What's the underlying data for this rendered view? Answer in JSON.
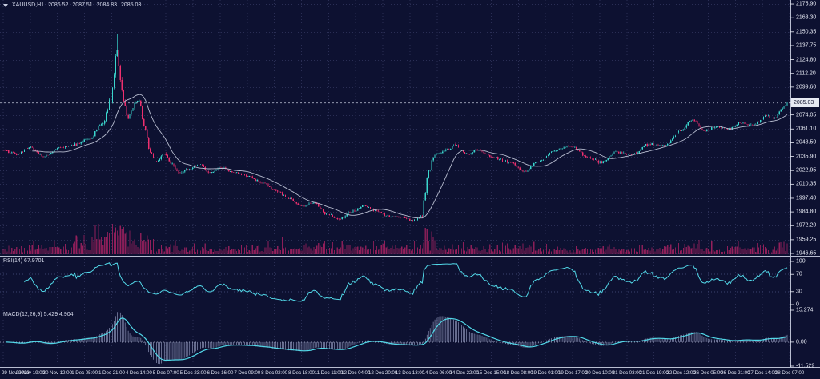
{
  "header": {
    "symbol_timeframe": "XAUUSD,H1",
    "open": "2086.52",
    "high": "2087.51",
    "low": "2084.83",
    "close": "2085.03"
  },
  "colors": {
    "background": "#0d1131",
    "grid": "#2a2e55",
    "bull": "#3bd5cd",
    "bear": "#ee2f6e",
    "ma_line": "#b7bccf",
    "volume": "#96205c",
    "indicator_line": "#52d8e8",
    "macd_histogram": "#9aa1c6",
    "separator": "#b8bdd1",
    "axis_text": "#e8ebf5",
    "guide_line": "#3c4270",
    "zero_line": "#8a90ab",
    "price_box_bg": "#e6e9f2",
    "price_box_text": "#10132e",
    "current_price_line": "#c3c8da"
  },
  "chart_data": {
    "type": "candlestick",
    "title": "XAUUSD,H1",
    "bars": 500,
    "seed": 7,
    "current_price": {
      "value": 2085.03,
      "label": "2085.03"
    },
    "price_path_anchors": [
      [
        0,
        2042
      ],
      [
        9,
        2038
      ],
      [
        18,
        2044
      ],
      [
        26,
        2036
      ],
      [
        37,
        2044
      ],
      [
        47,
        2047
      ],
      [
        55,
        2052
      ],
      [
        64,
        2066
      ],
      [
        69,
        2088
      ],
      [
        71,
        2112
      ],
      [
        73,
        2136
      ],
      [
        75,
        2108
      ],
      [
        77,
        2085
      ],
      [
        80,
        2072
      ],
      [
        84,
        2084
      ],
      [
        87,
        2087
      ],
      [
        90,
        2064
      ],
      [
        94,
        2040
      ],
      [
        98,
        2030
      ],
      [
        103,
        2039
      ],
      [
        107,
        2030
      ],
      [
        112,
        2021
      ],
      [
        118,
        2024
      ],
      [
        125,
        2029
      ],
      [
        132,
        2021
      ],
      [
        139,
        2026
      ],
      [
        147,
        2021
      ],
      [
        156,
        2018
      ],
      [
        165,
        2012
      ],
      [
        174,
        2004
      ],
      [
        183,
        1997
      ],
      [
        190,
        1990
      ],
      [
        198,
        1993
      ],
      [
        206,
        1983
      ],
      [
        214,
        1978
      ],
      [
        222,
        1985
      ],
      [
        230,
        1991
      ],
      [
        237,
        1986
      ],
      [
        246,
        1981
      ],
      [
        254,
        1980
      ],
      [
        261,
        1977
      ],
      [
        267,
        1980
      ],
      [
        268,
        1995
      ],
      [
        271,
        2022
      ],
      [
        274,
        2036
      ],
      [
        281,
        2041
      ],
      [
        288,
        2046
      ],
      [
        295,
        2038
      ],
      [
        303,
        2041
      ],
      [
        313,
        2035
      ],
      [
        322,
        2031
      ],
      [
        332,
        2022
      ],
      [
        341,
        2031
      ],
      [
        351,
        2041
      ],
      [
        361,
        2046
      ],
      [
        372,
        2035
      ],
      [
        381,
        2031
      ],
      [
        391,
        2040
      ],
      [
        401,
        2038
      ],
      [
        411,
        2047
      ],
      [
        421,
        2046
      ],
      [
        432,
        2060
      ],
      [
        439,
        2070
      ],
      [
        446,
        2059
      ],
      [
        454,
        2063
      ],
      [
        462,
        2061
      ],
      [
        469,
        2067
      ],
      [
        477,
        2065
      ],
      [
        486,
        2073
      ],
      [
        491,
        2071
      ],
      [
        496,
        2080
      ],
      [
        499,
        2085.03
      ]
    ],
    "volatility_anchors": [
      [
        0,
        1.5
      ],
      [
        50,
        1.8
      ],
      [
        64,
        2.6
      ],
      [
        69,
        5
      ],
      [
        73,
        8
      ],
      [
        77,
        5
      ],
      [
        85,
        3
      ],
      [
        95,
        3
      ],
      [
        110,
        2.2
      ],
      [
        150,
        1.7
      ],
      [
        200,
        1.9
      ],
      [
        261,
        1.6
      ],
      [
        268,
        4
      ],
      [
        274,
        3
      ],
      [
        290,
        2.2
      ],
      [
        340,
        1.8
      ],
      [
        430,
        2.0
      ],
      [
        499,
        1.7
      ]
    ],
    "spike": {
      "bar": 73,
      "high": 2148.5
    },
    "y_axis": {
      "plot_min": 1945.2,
      "plot_max": 2179.6,
      "tick_labels": [
        "2175.90",
        "2163.30",
        "2150.35",
        "2137.75",
        "2124.80",
        "2112.20",
        "2099.60",
        "2074.05",
        "2061.10",
        "2048.50",
        "2035.90",
        "2022.95",
        "2010.35",
        "1997.40",
        "1984.80",
        "1972.20",
        "1959.25",
        "1946.65"
      ]
    },
    "x_axis": {
      "tick_labels": [
        "29 Nov 2023",
        "29 Nov 19:00",
        "30 Nov 12:00",
        "1 Dec 05:00",
        "1 Dec 21:00",
        "4 Dec 14:00",
        "5 Dec 07:00",
        "5 Dec 23:00",
        "6 Dec 16:00",
        "7 Dec 09:00",
        "8 Dec 02:00",
        "8 Dec 18:00",
        "11 Dec 11:00",
        "12 Dec 04:00",
        "12 Dec 20:00",
        "13 Dec 13:00",
        "14 Dec 06:00",
        "14 Dec 22:00",
        "15 Dec 15:00",
        "18 Dec 08:00",
        "19 Dec 01:00",
        "19 Dec 17:00",
        "20 Dec 10:00",
        "21 Dec 03:00",
        "21 Dec 19:00",
        "22 Dec 12:00",
        "26 Dec 05:00",
        "26 Dec 21:00",
        "27 Dec 14:00",
        "28 Dec 07:00"
      ]
    },
    "overlays": [
      {
        "name": "sma",
        "period": 20
      }
    ],
    "volume": {
      "boost_anchors": [
        [
          0,
          1
        ],
        [
          72,
          2.2
        ],
        [
          76,
          1.4
        ],
        [
          100,
          1
        ],
        [
          268,
          1.6
        ],
        [
          280,
          1.3
        ],
        [
          400,
          1
        ],
        [
          440,
          1.3
        ],
        [
          499,
          1.2
        ]
      ]
    },
    "indicators": {
      "rsi": {
        "label": "RSI(14) 67.9701",
        "period": 14,
        "last_value": 67.9701,
        "tick_labels": [
          "100",
          "70",
          "30",
          "0"
        ],
        "guide_levels": [
          70,
          30
        ]
      },
      "macd": {
        "label": "MACD(12,26,9) 5.429 4.904",
        "fast": 12,
        "slow": 26,
        "signal_period": 9,
        "last_values": [
          5.429,
          4.904
        ],
        "tick_labels": [
          "15.274",
          "0.00",
          "-11.529"
        ],
        "axis_range": [
          -11.529,
          15.274
        ]
      }
    }
  }
}
